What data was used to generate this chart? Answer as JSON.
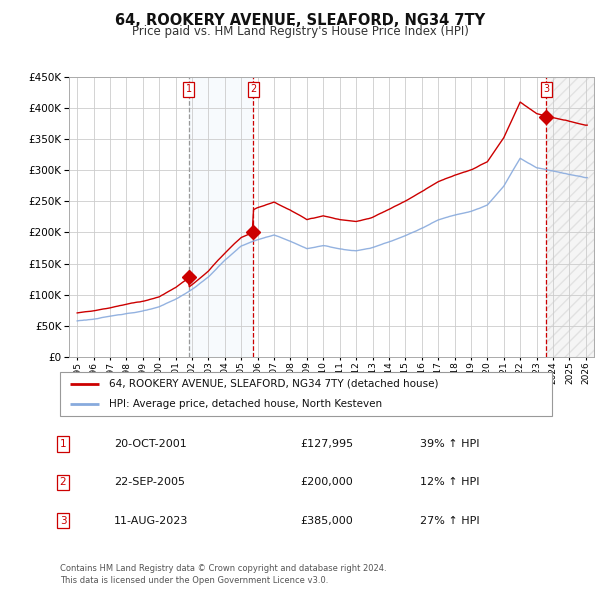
{
  "title": "64, ROOKERY AVENUE, SLEAFORD, NG34 7TY",
  "subtitle": "Price paid vs. HM Land Registry's House Price Index (HPI)",
  "footer": "Contains HM Land Registry data © Crown copyright and database right 2024.\nThis data is licensed under the Open Government Licence v3.0.",
  "legend_line1": "64, ROOKERY AVENUE, SLEAFORD, NG34 7TY (detached house)",
  "legend_line2": "HPI: Average price, detached house, North Kesteven",
  "sale_color": "#cc0000",
  "hpi_color": "#88aadd",
  "table_rows": [
    {
      "num": "1",
      "date": "20-OCT-2001",
      "price": "£127,995",
      "change": "39% ↑ HPI"
    },
    {
      "num": "2",
      "date": "22-SEP-2005",
      "price": "£200,000",
      "change": "12% ↑ HPI"
    },
    {
      "num": "3",
      "date": "11-AUG-2023",
      "price": "£385,000",
      "change": "27% ↑ HPI"
    }
  ],
  "sale_dates": [
    2001.8,
    2005.72,
    2023.6
  ],
  "sale_prices": [
    127995,
    200000,
    385000
  ],
  "ylim": [
    0,
    450000
  ],
  "yticks": [
    0,
    50000,
    100000,
    150000,
    200000,
    250000,
    300000,
    350000,
    400000,
    450000
  ],
  "xlim": [
    1994.5,
    2026.5
  ],
  "background_color": "#ffffff",
  "grid_color": "#cccccc",
  "shade_color": "#d8e8f8",
  "hatch_color": "#dddddd"
}
